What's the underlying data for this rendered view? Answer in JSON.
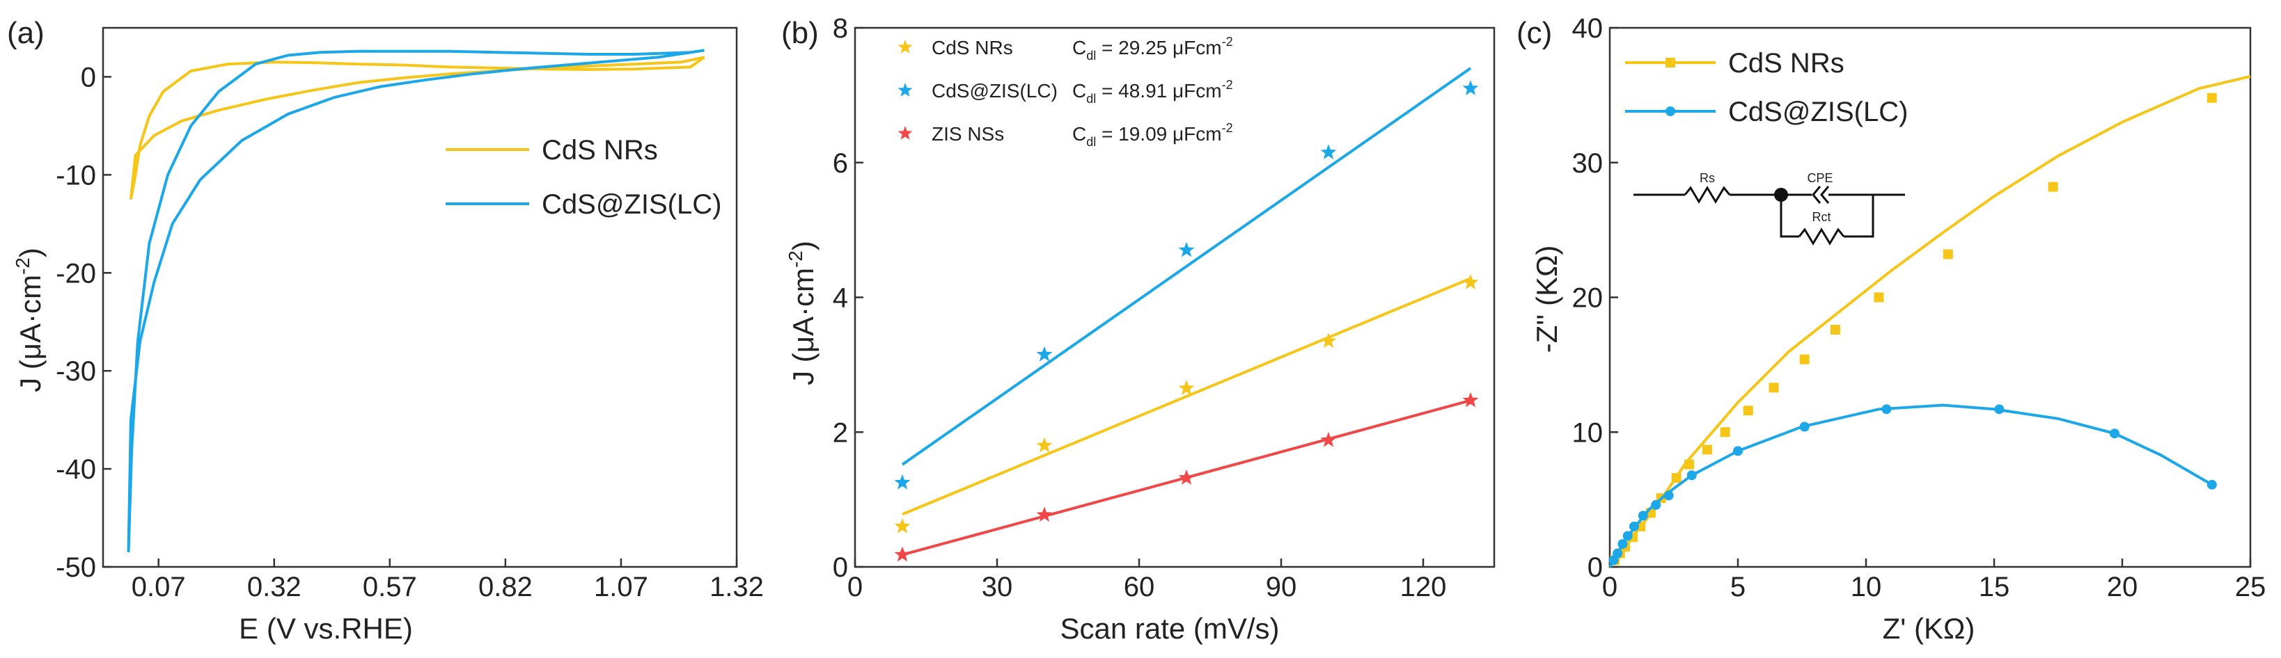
{
  "colors": {
    "cds": "#F5C518",
    "czl": "#1BA7E8",
    "zis": "#F04848",
    "axis": "#333333"
  },
  "chart_data": [
    {
      "type": "line",
      "panel_label": "(a)",
      "xlabel": "E (V vs.RHE)",
      "ylabel": "J (μA·cm⁻²)",
      "xlim": [
        -0.05,
        1.32
      ],
      "ylim": [
        -50,
        5
      ],
      "xticks": [
        "0.07",
        "0.32",
        "0.57",
        "0.82",
        "1.07",
        "1.32"
      ],
      "yticks": [
        "0",
        "-10",
        "-20",
        "-30",
        "-40",
        "-50"
      ],
      "legend": [
        "CdS NRs",
        "CdS@ZIS(LC)"
      ],
      "series": [
        {
          "name": "CdS NRs",
          "forward": [
            [
              0.01,
              -12.5
            ],
            [
              0.02,
              -8
            ],
            [
              0.06,
              -6
            ],
            [
              0.12,
              -4.5
            ],
            [
              0.2,
              -3.4
            ],
            [
              0.3,
              -2.3
            ],
            [
              0.4,
              -1.4
            ],
            [
              0.5,
              -0.6
            ],
            [
              0.6,
              -0.1
            ],
            [
              0.7,
              0.3
            ],
            [
              0.8,
              0.6
            ],
            [
              0.9,
              0.9
            ],
            [
              1.0,
              1.1
            ],
            [
              1.1,
              1.3
            ],
            [
              1.2,
              1.5
            ],
            [
              1.25,
              2.0
            ]
          ],
          "reverse": [
            [
              1.25,
              2.0
            ],
            [
              1.22,
              1.0
            ],
            [
              1.1,
              0.8
            ],
            [
              1.0,
              0.75
            ],
            [
              0.9,
              0.8
            ],
            [
              0.8,
              0.9
            ],
            [
              0.7,
              1.0
            ],
            [
              0.6,
              1.2
            ],
            [
              0.5,
              1.3
            ],
            [
              0.4,
              1.45
            ],
            [
              0.32,
              1.5
            ],
            [
              0.22,
              1.3
            ],
            [
              0.14,
              0.6
            ],
            [
              0.08,
              -1.5
            ],
            [
              0.05,
              -4
            ],
            [
              0.03,
              -7
            ],
            [
              0.02,
              -10
            ],
            [
              0.01,
              -12.5
            ]
          ]
        },
        {
          "name": "CdS@ZIS(LC)",
          "forward": [
            [
              0.005,
              -48.5
            ],
            [
              0.01,
              -35
            ],
            [
              0.03,
              -27
            ],
            [
              0.06,
              -21
            ],
            [
              0.1,
              -15
            ],
            [
              0.16,
              -10.5
            ],
            [
              0.25,
              -6.5
            ],
            [
              0.35,
              -3.8
            ],
            [
              0.45,
              -2.1
            ],
            [
              0.55,
              -1.0
            ],
            [
              0.65,
              -0.3
            ],
            [
              0.75,
              0.3
            ],
            [
              0.85,
              0.8
            ],
            [
              0.95,
              1.2
            ],
            [
              1.05,
              1.6
            ],
            [
              1.15,
              2.0
            ],
            [
              1.25,
              2.7
            ]
          ],
          "reverse": [
            [
              1.25,
              2.7
            ],
            [
              1.22,
              2.5
            ],
            [
              1.1,
              2.3
            ],
            [
              1.0,
              2.3
            ],
            [
              0.9,
              2.4
            ],
            [
              0.8,
              2.5
            ],
            [
              0.7,
              2.6
            ],
            [
              0.6,
              2.6
            ],
            [
              0.5,
              2.6
            ],
            [
              0.42,
              2.5
            ],
            [
              0.35,
              2.2
            ],
            [
              0.28,
              1.3
            ],
            [
              0.2,
              -1.5
            ],
            [
              0.14,
              -5
            ],
            [
              0.09,
              -10
            ],
            [
              0.05,
              -17
            ],
            [
              0.025,
              -27
            ],
            [
              0.012,
              -38
            ],
            [
              0.005,
              -48.5
            ]
          ]
        }
      ]
    },
    {
      "type": "scatter",
      "panel_label": "(b)",
      "xlabel": "Scan rate (mV/s)",
      "ylabel": "J (μA·cm⁻²)",
      "xlim": [
        0,
        135
      ],
      "ylim": [
        0,
        8
      ],
      "xticks": [
        "0",
        "30",
        "60",
        "90",
        "120"
      ],
      "yticks": [
        "0",
        "2",
        "4",
        "6",
        "8"
      ],
      "x": [
        10,
        40,
        70,
        100,
        130
      ],
      "series": [
        {
          "name": "CdS NRs",
          "cdl_label": "C",
          "cdl_sub": "dl",
          "cdl_value": "= 29.25  μFcm",
          "cdl_exp": "-2",
          "values": [
            0.6,
            1.8,
            2.65,
            3.35,
            4.22
          ],
          "fit": [
            [
              10,
              0.78
            ],
            [
              130,
              4.28
            ]
          ]
        },
        {
          "name": "CdS@ZIS(LC)",
          "cdl_label": "C",
          "cdl_sub": "dl",
          "cdl_value": "= 48.91  μFcm",
          "cdl_exp": "-2",
          "values": [
            1.25,
            3.15,
            4.7,
            6.15,
            7.1
          ],
          "fit": [
            [
              10,
              1.52
            ],
            [
              130,
              7.4
            ]
          ]
        },
        {
          "name": "ZIS NSs",
          "cdl_label": "C",
          "cdl_sub": "dl",
          "cdl_value": "= 19.09  μFcm",
          "cdl_exp": "-2",
          "values": [
            0.18,
            0.77,
            1.32,
            1.88,
            2.47
          ],
          "fit": [
            [
              10,
              0.18
            ],
            [
              130,
              2.47
            ]
          ]
        }
      ]
    },
    {
      "type": "line",
      "panel_label": "(c)",
      "xlabel": "Z' (KΩ)",
      "ylabel": "-Z'' (KΩ)",
      "xlim": [
        0,
        25
      ],
      "ylim": [
        0,
        40
      ],
      "xticks": [
        "0",
        "5",
        "10",
        "15",
        "20",
        "25"
      ],
      "yticks": [
        "0",
        "10",
        "20",
        "30",
        "40"
      ],
      "legend": [
        "CdS NRs",
        "CdS@ZIS(LC)"
      ],
      "circuit_labels": [
        "Rs",
        "CPE",
        "Rct"
      ],
      "series": [
        {
          "name": "CdS NRs",
          "line": [
            [
              0,
              0
            ],
            [
              0.3,
              0.8
            ],
            [
              0.7,
              1.8
            ],
            [
              1.3,
              3.2
            ],
            [
              2,
              5
            ],
            [
              3,
              7.8
            ],
            [
              4,
              10
            ],
            [
              5,
              12.2
            ],
            [
              7,
              16
            ],
            [
              9,
              19
            ],
            [
              11,
              22
            ],
            [
              13,
              24.8
            ],
            [
              15,
              27.5
            ],
            [
              17.5,
              30.5
            ],
            [
              20,
              33
            ],
            [
              23,
              35.5
            ],
            [
              25,
              36.4
            ]
          ],
          "markers": [
            [
              0.2,
              0.5
            ],
            [
              0.4,
              1.0
            ],
            [
              0.6,
              1.5
            ],
            [
              0.9,
              2.2
            ],
            [
              1.2,
              3.0
            ],
            [
              1.6,
              4.0
            ],
            [
              2.0,
              5.1
            ],
            [
              2.6,
              6.6
            ],
            [
              3.1,
              7.6
            ],
            [
              3.8,
              8.7
            ],
            [
              4.5,
              10.0
            ],
            [
              5.4,
              11.6
            ],
            [
              6.4,
              13.3
            ],
            [
              7.6,
              15.4
            ],
            [
              8.8,
              17.6
            ],
            [
              10.5,
              20.0
            ],
            [
              13.2,
              23.2
            ],
            [
              17.3,
              28.2
            ],
            [
              23.5,
              34.8
            ]
          ]
        },
        {
          "name": "CdS@ZIS(LC)",
          "line": [
            [
              0,
              0
            ],
            [
              0.3,
              1
            ],
            [
              0.6,
              2
            ],
            [
              1,
              3
            ],
            [
              1.5,
              4.2
            ],
            [
              2.2,
              5.4
            ],
            [
              3.2,
              6.8
            ],
            [
              5,
              8.6
            ],
            [
              7.5,
              10.4
            ],
            [
              10.5,
              11.7
            ],
            [
              13,
              12
            ],
            [
              15,
              11.7
            ],
            [
              17.5,
              11
            ],
            [
              19.7,
              9.9
            ],
            [
              21.5,
              8.3
            ],
            [
              23.5,
              6.1
            ]
          ],
          "markers": [
            [
              0.15,
              0.5
            ],
            [
              0.3,
              1.0
            ],
            [
              0.5,
              1.7
            ],
            [
              0.7,
              2.3
            ],
            [
              0.95,
              3.0
            ],
            [
              1.3,
              3.8
            ],
            [
              1.8,
              4.6
            ],
            [
              2.3,
              5.3
            ],
            [
              3.2,
              6.8
            ],
            [
              5.0,
              8.6
            ],
            [
              7.6,
              10.4
            ],
            [
              10.8,
              11.7
            ],
            [
              15.2,
              11.7
            ],
            [
              19.7,
              9.9
            ],
            [
              23.5,
              6.1
            ]
          ]
        }
      ]
    }
  ]
}
